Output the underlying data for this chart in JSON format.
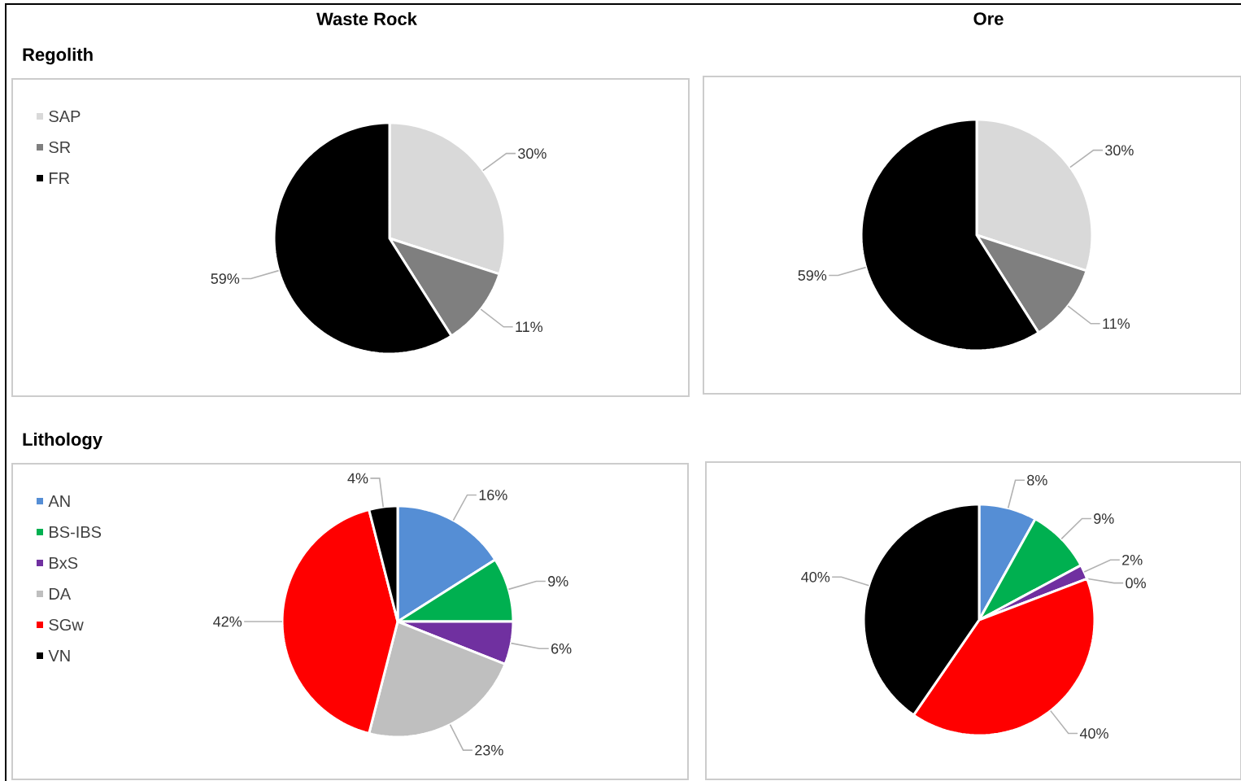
{
  "chart_data": [
    {
      "type": "pie",
      "title": "Waste Rock",
      "subtitle": "Regolith",
      "categories": [
        "SAP",
        "SR",
        "FR"
      ],
      "values": [
        30,
        11,
        59
      ],
      "colors": [
        "#d9d9d9",
        "#7f7f7f",
        "#000000"
      ],
      "value_labels": [
        "30%",
        "11%",
        "59%"
      ],
      "legend": "top left"
    },
    {
      "type": "pie",
      "title": "Ore",
      "categories": [
        null,
        null,
        null
      ],
      "values": [
        30,
        11,
        59
      ],
      "colors": [
        "#d9d9d9",
        "#7f7f7f",
        "#000000"
      ],
      "value_labels": [
        "30%",
        "11%",
        "59%"
      ],
      "legend": false
    },
    {
      "type": "pie",
      "subtitle": "Lithology",
      "categories": [
        "AN",
        "BS-IBS",
        "BxS",
        "DA",
        "SGw",
        "VN"
      ],
      "values": [
        16,
        9,
        6,
        23,
        42,
        4
      ],
      "colors": [
        "#558ed5",
        "#00b050",
        "#7030a0",
        "#bfbfbf",
        "#ff0000",
        "#000000"
      ],
      "value_labels": [
        "16%",
        "9%",
        "6%",
        "23%",
        "42%",
        "4%"
      ],
      "legend": "top left"
    },
    {
      "type": "pie",
      "categories": [
        null,
        null,
        null,
        null,
        null,
        null
      ],
      "values": [
        8,
        9,
        2,
        0,
        40,
        40
      ],
      "colors": [
        "#558ed5",
        "#00b050",
        "#7030a0",
        "#bfbfbf",
        "#ff0000",
        "#000000"
      ],
      "value_labels": [
        "8%",
        "9%",
        "2%",
        "0%",
        "40%",
        "40%"
      ],
      "legend": false
    }
  ]
}
